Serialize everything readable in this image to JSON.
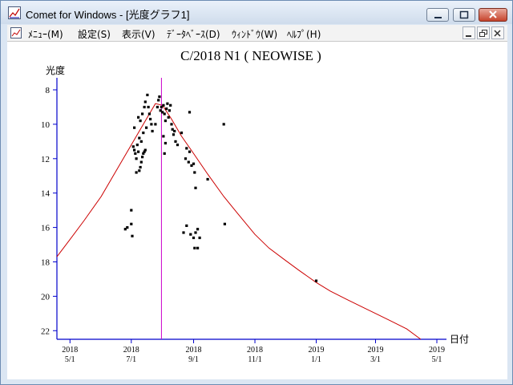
{
  "window": {
    "title": "Comet for Windows - [光度グラフ1]"
  },
  "menu": {
    "items": [
      "ﾒﾆｭｰ(M)",
      "設定(S)",
      "表示(V)",
      "ﾃﾞｰﾀﾍﾞｰｽ(D)",
      "ｳｨﾝﾄﾞｳ(W)",
      "ﾍﾙﾌﾟ(H)"
    ]
  },
  "icons": {
    "app": "chart-icon",
    "minimize": "minimize-icon",
    "maximize": "maximize-icon",
    "close": "close-icon",
    "mdi_minimize": "minimize-icon",
    "mdi_restore": "restore-icon",
    "mdi_close": "close-icon"
  },
  "colors": {
    "axis": "#0000cc",
    "curve": "#cc0000",
    "marker_line": "#cc00cc",
    "points": "#000000"
  },
  "chart_data": {
    "type": "scatter",
    "title": "C/2018 N1 ( NEOWISE )",
    "ylabel": "光度",
    "xlabel": "日付",
    "ylim": [
      22.5,
      7.3
    ],
    "y_inverted": true,
    "yticks": [
      8,
      10,
      12,
      14,
      16,
      18,
      20,
      22
    ],
    "xlim": [
      "2018-04-18",
      "2019-05-01"
    ],
    "xticks": [
      {
        "date": "2018-05-01",
        "year": "2018",
        "md": "5/1"
      },
      {
        "date": "2018-07-01",
        "year": "2018",
        "md": "7/1"
      },
      {
        "date": "2018-09-01",
        "year": "2018",
        "md": "9/1"
      },
      {
        "date": "2018-11-01",
        "year": "2018",
        "md": "11/1"
      },
      {
        "date": "2019-01-01",
        "year": "2019",
        "md": "1/1"
      },
      {
        "date": "2019-03-01",
        "year": "2019",
        "md": "3/1"
      },
      {
        "date": "2019-05-01",
        "year": "2019",
        "md": "5/1"
      }
    ],
    "marker_date": "2018-07-31",
    "curve": {
      "name": "",
      "points": [
        [
          "2018-04-18",
          17.7
        ],
        [
          "2018-05-01",
          16.7
        ],
        [
          "2018-05-15",
          15.6
        ],
        [
          "2018-06-01",
          14.2
        ],
        [
          "2018-06-15",
          12.8
        ],
        [
          "2018-07-01",
          11.2
        ],
        [
          "2018-07-15",
          9.8
        ],
        [
          "2018-07-25",
          8.8
        ],
        [
          "2018-08-01",
          8.9
        ],
        [
          "2018-08-10",
          9.7
        ],
        [
          "2018-08-20",
          10.7
        ],
        [
          "2018-09-01",
          11.7
        ],
        [
          "2018-09-15",
          12.9
        ],
        [
          "2018-10-01",
          14.2
        ],
        [
          "2018-10-15",
          15.2
        ],
        [
          "2018-11-01",
          16.4
        ],
        [
          "2018-11-15",
          17.2
        ],
        [
          "2018-12-01",
          17.9
        ],
        [
          "2018-12-15",
          18.5
        ],
        [
          "2019-01-01",
          19.2
        ],
        [
          "2019-01-15",
          19.7
        ],
        [
          "2019-02-01",
          20.2
        ],
        [
          "2019-02-15",
          20.6
        ],
        [
          "2019-03-01",
          21.0
        ],
        [
          "2019-03-15",
          21.4
        ],
        [
          "2019-04-01",
          21.9
        ],
        [
          "2019-04-15",
          22.5
        ]
      ]
    },
    "observations": [
      [
        "2018-06-25",
        16.1
      ],
      [
        "2018-06-27",
        16.0
      ],
      [
        "2018-07-01",
        15.8
      ],
      [
        "2018-07-02",
        16.5
      ],
      [
        "2018-07-01",
        15.0
      ],
      [
        "2018-07-03",
        11.3
      ],
      [
        "2018-07-04",
        11.5
      ],
      [
        "2018-07-05",
        11.7
      ],
      [
        "2018-07-06",
        12.0
      ],
      [
        "2018-07-07",
        11.2
      ],
      [
        "2018-07-08",
        11.6
      ],
      [
        "2018-07-06",
        12.8
      ],
      [
        "2018-07-09",
        12.7
      ],
      [
        "2018-07-10",
        12.5
      ],
      [
        "2018-07-11",
        12.2
      ],
      [
        "2018-07-12",
        11.9
      ],
      [
        "2018-07-13",
        11.7
      ],
      [
        "2018-07-14",
        11.6
      ],
      [
        "2018-07-15",
        11.5
      ],
      [
        "2018-07-04",
        10.2
      ],
      [
        "2018-07-08",
        9.6
      ],
      [
        "2018-07-10",
        9.8
      ],
      [
        "2018-07-12",
        9.4
      ],
      [
        "2018-07-14",
        9.0
      ],
      [
        "2018-07-15",
        8.7
      ],
      [
        "2018-07-17",
        8.3
      ],
      [
        "2018-07-18",
        9.0
      ],
      [
        "2018-07-19",
        9.4
      ],
      [
        "2018-07-20",
        9.7
      ],
      [
        "2018-07-21",
        10.0
      ],
      [
        "2018-07-22",
        10.4
      ],
      [
        "2018-07-09",
        10.8
      ],
      [
        "2018-07-11",
        11.0
      ],
      [
        "2018-07-13",
        10.5
      ],
      [
        "2018-07-16",
        10.2
      ],
      [
        "2018-07-25",
        10.0
      ],
      [
        "2018-07-27",
        9.0
      ],
      [
        "2018-07-28",
        8.6
      ],
      [
        "2018-07-29",
        8.4
      ],
      [
        "2018-07-30",
        9.2
      ],
      [
        "2018-07-31",
        9.0
      ],
      [
        "2018-08-01",
        9.3
      ],
      [
        "2018-08-02",
        8.9
      ],
      [
        "2018-08-03",
        9.4
      ],
      [
        "2018-08-04",
        9.8
      ],
      [
        "2018-08-05",
        9.1
      ],
      [
        "2018-08-06",
        8.8
      ],
      [
        "2018-08-07",
        9.6
      ],
      [
        "2018-08-08",
        9.2
      ],
      [
        "2018-08-09",
        8.9
      ],
      [
        "2018-08-10",
        10.0
      ],
      [
        "2018-08-11",
        10.3
      ],
      [
        "2018-08-12",
        10.6
      ],
      [
        "2018-08-13",
        10.4
      ],
      [
        "2018-08-02",
        10.7
      ],
      [
        "2018-08-04",
        11.1
      ],
      [
        "2018-08-03",
        11.7
      ],
      [
        "2018-08-14",
        11.0
      ],
      [
        "2018-08-16",
        11.2
      ],
      [
        "2018-08-20",
        10.5
      ],
      [
        "2018-08-24",
        12.0
      ],
      [
        "2018-08-25",
        11.4
      ],
      [
        "2018-08-27",
        12.2
      ],
      [
        "2018-08-28",
        11.6
      ],
      [
        "2018-08-30",
        12.4
      ],
      [
        "2018-09-01",
        12.3
      ],
      [
        "2018-09-02",
        12.8
      ],
      [
        "2018-09-03",
        13.7
      ],
      [
        "2018-08-28",
        9.3
      ],
      [
        "2018-08-22",
        16.3
      ],
      [
        "2018-08-25",
        15.9
      ],
      [
        "2018-08-29",
        16.4
      ],
      [
        "2018-09-01",
        16.6
      ],
      [
        "2018-09-03",
        16.3
      ],
      [
        "2018-09-05",
        16.1
      ],
      [
        "2018-09-07",
        16.6
      ],
      [
        "2018-09-02",
        17.2
      ],
      [
        "2018-09-05",
        17.2
      ],
      [
        "2018-09-15",
        13.2
      ],
      [
        "2018-10-01",
        10.0
      ],
      [
        "2018-10-02",
        15.8
      ],
      [
        "2019-01-01",
        19.1
      ]
    ]
  }
}
